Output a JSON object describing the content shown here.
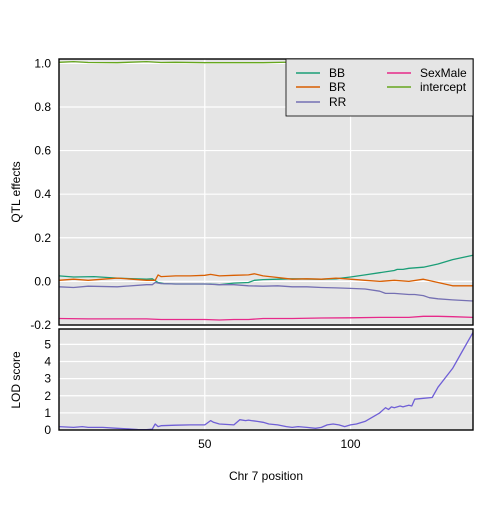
{
  "chart_data": [
    {
      "type": "line",
      "title": "",
      "xlabel": "",
      "ylabel": "QTL effects",
      "xlim": [
        0,
        142
      ],
      "ylim": [
        -0.2,
        1.02
      ],
      "yticks": [
        -0.2,
        0.0,
        0.2,
        0.4,
        0.6,
        0.8,
        1.0
      ],
      "ytick_labels": [
        "-0.2",
        "0.0",
        "0.2",
        "0.4",
        "0.6",
        "0.8",
        "1.0"
      ],
      "xticks": [
        50,
        100
      ],
      "grid": true,
      "legend": {
        "placement": "top-right",
        "columns": 2
      },
      "series": [
        {
          "name": "BB",
          "color": "#1b9e77",
          "x": [
            0,
            5,
            12,
            20,
            30,
            32,
            34,
            36,
            40,
            50,
            52,
            55,
            60,
            65,
            67,
            70,
            75,
            80,
            90,
            95,
            100,
            105,
            110,
            115,
            116,
            118,
            120,
            125,
            130,
            135,
            142
          ],
          "y": [
            0.025,
            0.02,
            0.022,
            0.015,
            0.01,
            0.012,
            -0.005,
            -0.01,
            -0.012,
            -0.012,
            -0.012,
            -0.015,
            -0.008,
            -0.005,
            0.005,
            0.008,
            0.01,
            0.012,
            0.01,
            0.012,
            0.02,
            0.03,
            0.04,
            0.05,
            0.055,
            0.055,
            0.06,
            0.065,
            0.08,
            0.1,
            0.12
          ]
        },
        {
          "name": "BR",
          "color": "#d95f02",
          "x": [
            0,
            5,
            10,
            15,
            20,
            25,
            30,
            33,
            34,
            35,
            40,
            45,
            50,
            52,
            55,
            60,
            65,
            67,
            70,
            75,
            80,
            85,
            90,
            95,
            100,
            105,
            110,
            115,
            120,
            125,
            130,
            135,
            142
          ],
          "y": [
            0.005,
            0.01,
            0.005,
            0.01,
            0.015,
            0.01,
            0.005,
            0.005,
            0.03,
            0.022,
            0.025,
            0.025,
            0.028,
            0.032,
            0.025,
            0.028,
            0.03,
            0.035,
            0.025,
            0.018,
            0.01,
            0.012,
            0.01,
            0.015,
            0.01,
            0.005,
            0.0,
            0.005,
            0.0,
            0.01,
            -0.005,
            -0.02,
            -0.02
          ]
        },
        {
          "name": "RR",
          "color": "#7570b3",
          "x": [
            0,
            5,
            10,
            20,
            30,
            32,
            33,
            35,
            40,
            50,
            55,
            60,
            65,
            70,
            75,
            80,
            85,
            90,
            95,
            100,
            105,
            110,
            112,
            115,
            120,
            122,
            125,
            127,
            130,
            135,
            142
          ],
          "y": [
            -0.025,
            -0.028,
            -0.022,
            -0.025,
            -0.015,
            -0.015,
            -0.005,
            -0.01,
            -0.012,
            -0.012,
            -0.015,
            -0.015,
            -0.02,
            -0.022,
            -0.02,
            -0.025,
            -0.025,
            -0.028,
            -0.03,
            -0.032,
            -0.035,
            -0.045,
            -0.055,
            -0.055,
            -0.06,
            -0.06,
            -0.065,
            -0.075,
            -0.08,
            -0.085,
            -0.09
          ]
        },
        {
          "name": "SexMale",
          "color": "#e7298a",
          "x": [
            0,
            10,
            20,
            30,
            35,
            40,
            50,
            55,
            60,
            65,
            70,
            80,
            90,
            100,
            110,
            120,
            125,
            130,
            135,
            142
          ],
          "y": [
            -0.17,
            -0.172,
            -0.172,
            -0.172,
            -0.175,
            -0.175,
            -0.175,
            -0.177,
            -0.175,
            -0.175,
            -0.17,
            -0.17,
            -0.168,
            -0.167,
            -0.165,
            -0.165,
            -0.16,
            -0.16,
            -0.162,
            -0.165
          ]
        },
        {
          "name": "intercept",
          "color": "#66a61e",
          "x": [
            0,
            5,
            10,
            20,
            30,
            35,
            40,
            50,
            60,
            70,
            80,
            85
          ],
          "y": [
            1.005,
            1.008,
            1.004,
            1.003,
            1.008,
            1.004,
            1.005,
            1.003,
            1.003,
            1.003,
            1.006,
            1.007
          ]
        }
      ]
    },
    {
      "type": "line",
      "title": "",
      "xlabel": "Chr 7 position",
      "ylabel": "LOD score",
      "xlim": [
        0,
        142
      ],
      "ylim": [
        0,
        5.9
      ],
      "yticks": [
        0,
        1,
        2,
        3,
        4,
        5
      ],
      "ytick_labels": [
        "0",
        "1",
        "2",
        "3",
        "4",
        "5"
      ],
      "xticks": [
        50,
        100
      ],
      "xtick_labels": [
        "50",
        "100"
      ],
      "grid": true,
      "series": [
        {
          "color": "#6f5fd6",
          "x": [
            0,
            5,
            8,
            10,
            15,
            20,
            25,
            27,
            30,
            32,
            33,
            34,
            35,
            40,
            45,
            48,
            50,
            52,
            53,
            55,
            60,
            62,
            64,
            65,
            66,
            68,
            70,
            72,
            75,
            78,
            80,
            82,
            85,
            88,
            90,
            92,
            94,
            96,
            98,
            100,
            102,
            105,
            108,
            110,
            112,
            113,
            114,
            115,
            117,
            118,
            119,
            120,
            121,
            122,
            125,
            128,
            130,
            135,
            138,
            142
          ],
          "y": [
            0.2,
            0.15,
            0.2,
            0.15,
            0.15,
            0.1,
            0.05,
            0.03,
            0.02,
            0.05,
            0.35,
            0.2,
            0.25,
            0.28,
            0.3,
            0.3,
            0.3,
            0.55,
            0.45,
            0.35,
            0.3,
            0.6,
            0.55,
            0.58,
            0.55,
            0.5,
            0.45,
            0.35,
            0.3,
            0.2,
            0.15,
            0.2,
            0.15,
            0.1,
            0.15,
            0.3,
            0.35,
            0.3,
            0.2,
            0.3,
            0.35,
            0.5,
            0.8,
            1.0,
            1.3,
            1.2,
            1.35,
            1.3,
            1.4,
            1.35,
            1.4,
            1.45,
            1.4,
            1.8,
            1.85,
            1.9,
            2.5,
            3.6,
            4.5,
            5.7
          ]
        }
      ]
    }
  ]
}
